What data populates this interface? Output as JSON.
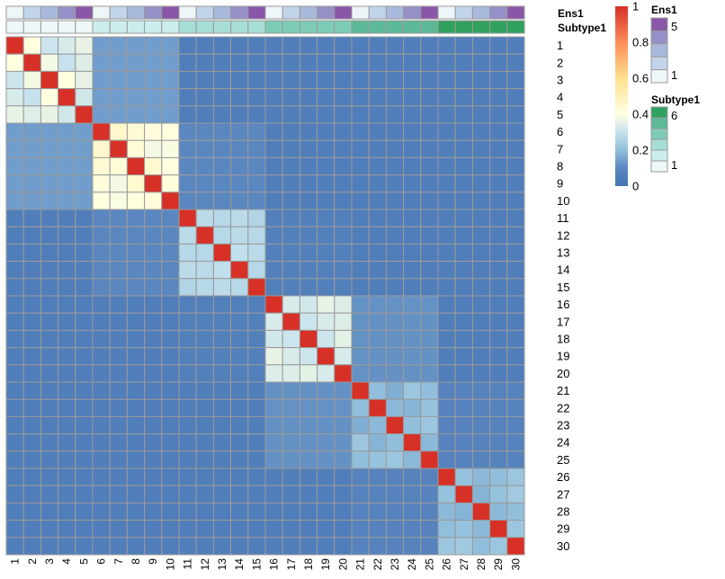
{
  "chart_data": {
    "type": "heatmap",
    "labels": [
      "1",
      "2",
      "3",
      "4",
      "5",
      "6",
      "7",
      "8",
      "9",
      "10",
      "11",
      "12",
      "13",
      "14",
      "15",
      "16",
      "17",
      "18",
      "19",
      "20",
      "21",
      "22",
      "23",
      "24",
      "25",
      "26",
      "27",
      "28",
      "29",
      "30"
    ],
    "groups": [
      {
        "start": 0,
        "size": 5,
        "within": [
          0.4,
          0.31,
          0.33,
          0.36,
          0.38,
          0.3,
          0.34,
          0.4,
          0.36,
          0.32
        ],
        "to_next": 0.14
      },
      {
        "start": 5,
        "size": 5,
        "within": [
          0.45,
          0.43,
          0.41,
          0.4,
          0.42,
          0.38,
          0.39,
          0.44,
          0.4,
          0.41
        ],
        "to_next": 0.1
      },
      {
        "start": 10,
        "size": 5,
        "within": [
          0.28,
          0.27,
          0.28,
          0.26,
          0.27,
          0.28,
          0.27,
          0.29,
          0.28,
          0.27
        ],
        "to_next": 0.06
      },
      {
        "start": 15,
        "size": 5,
        "within": [
          0.33,
          0.32,
          0.36,
          0.34,
          0.31,
          0.33,
          0.34,
          0.31,
          0.35,
          0.33
        ],
        "to_next": 0.12
      },
      {
        "start": 20,
        "size": 5,
        "within": [
          0.2,
          0.17,
          0.22,
          0.2,
          0.19,
          0.18,
          0.21,
          0.2,
          0.22,
          0.19
        ],
        "to_next": 0.08
      },
      {
        "start": 25,
        "size": 5,
        "within": [
          0.21,
          0.19,
          0.2,
          0.22,
          0.18,
          0.21,
          0.23,
          0.19,
          0.2,
          0.22
        ],
        "to_next": null
      }
    ],
    "background_value": 0.05,
    "diagonal_value": 1,
    "color_scale": {
      "min": 0,
      "max": 1,
      "stops": [
        {
          "value": 0,
          "color": "#4575b4"
        },
        {
          "value": 0.1,
          "color": "#5a87c0"
        },
        {
          "value": 0.2,
          "color": "#91bfdb"
        },
        {
          "value": 0.3,
          "color": "#c6e2ee"
        },
        {
          "value": 0.4,
          "color": "#ffffe0"
        },
        {
          "value": 0.6,
          "color": "#fee090"
        },
        {
          "value": 0.8,
          "color": "#fc8d59"
        },
        {
          "value": 1,
          "color": "#d73027"
        }
      ],
      "ticks": [
        "0",
        "0.2",
        "0.4",
        "0.6",
        "0.8",
        "1"
      ]
    },
    "annotations": [
      {
        "name": "Ens1",
        "values": [
          1,
          2,
          3,
          4,
          5,
          1,
          2,
          3,
          4,
          5,
          1,
          2,
          3,
          4,
          5,
          1,
          2,
          3,
          4,
          5,
          1,
          2,
          3,
          4,
          5,
          1,
          2,
          3,
          4,
          5
        ],
        "colors": {
          "1": "#eef6fa",
          "2": "#c2d4ea",
          "3": "#a9b9dc",
          "4": "#9690c8",
          "5": "#8a56a8"
        },
        "legend_ticks": [
          "5",
          "1"
        ]
      },
      {
        "name": "Subtype1",
        "values": [
          1,
          1,
          1,
          1,
          1,
          2,
          2,
          2,
          2,
          2,
          3,
          3,
          3,
          3,
          3,
          4,
          4,
          4,
          4,
          4,
          5,
          5,
          5,
          5,
          5,
          6,
          6,
          6,
          6,
          6
        ],
        "colors": {
          "1": "#eef8f8",
          "2": "#cbeeed",
          "3": "#a7ded6",
          "4": "#7dcbb6",
          "5": "#5cb997",
          "6": "#30a15e"
        },
        "legend_ticks": [
          "6",
          "1"
        ]
      }
    ]
  }
}
